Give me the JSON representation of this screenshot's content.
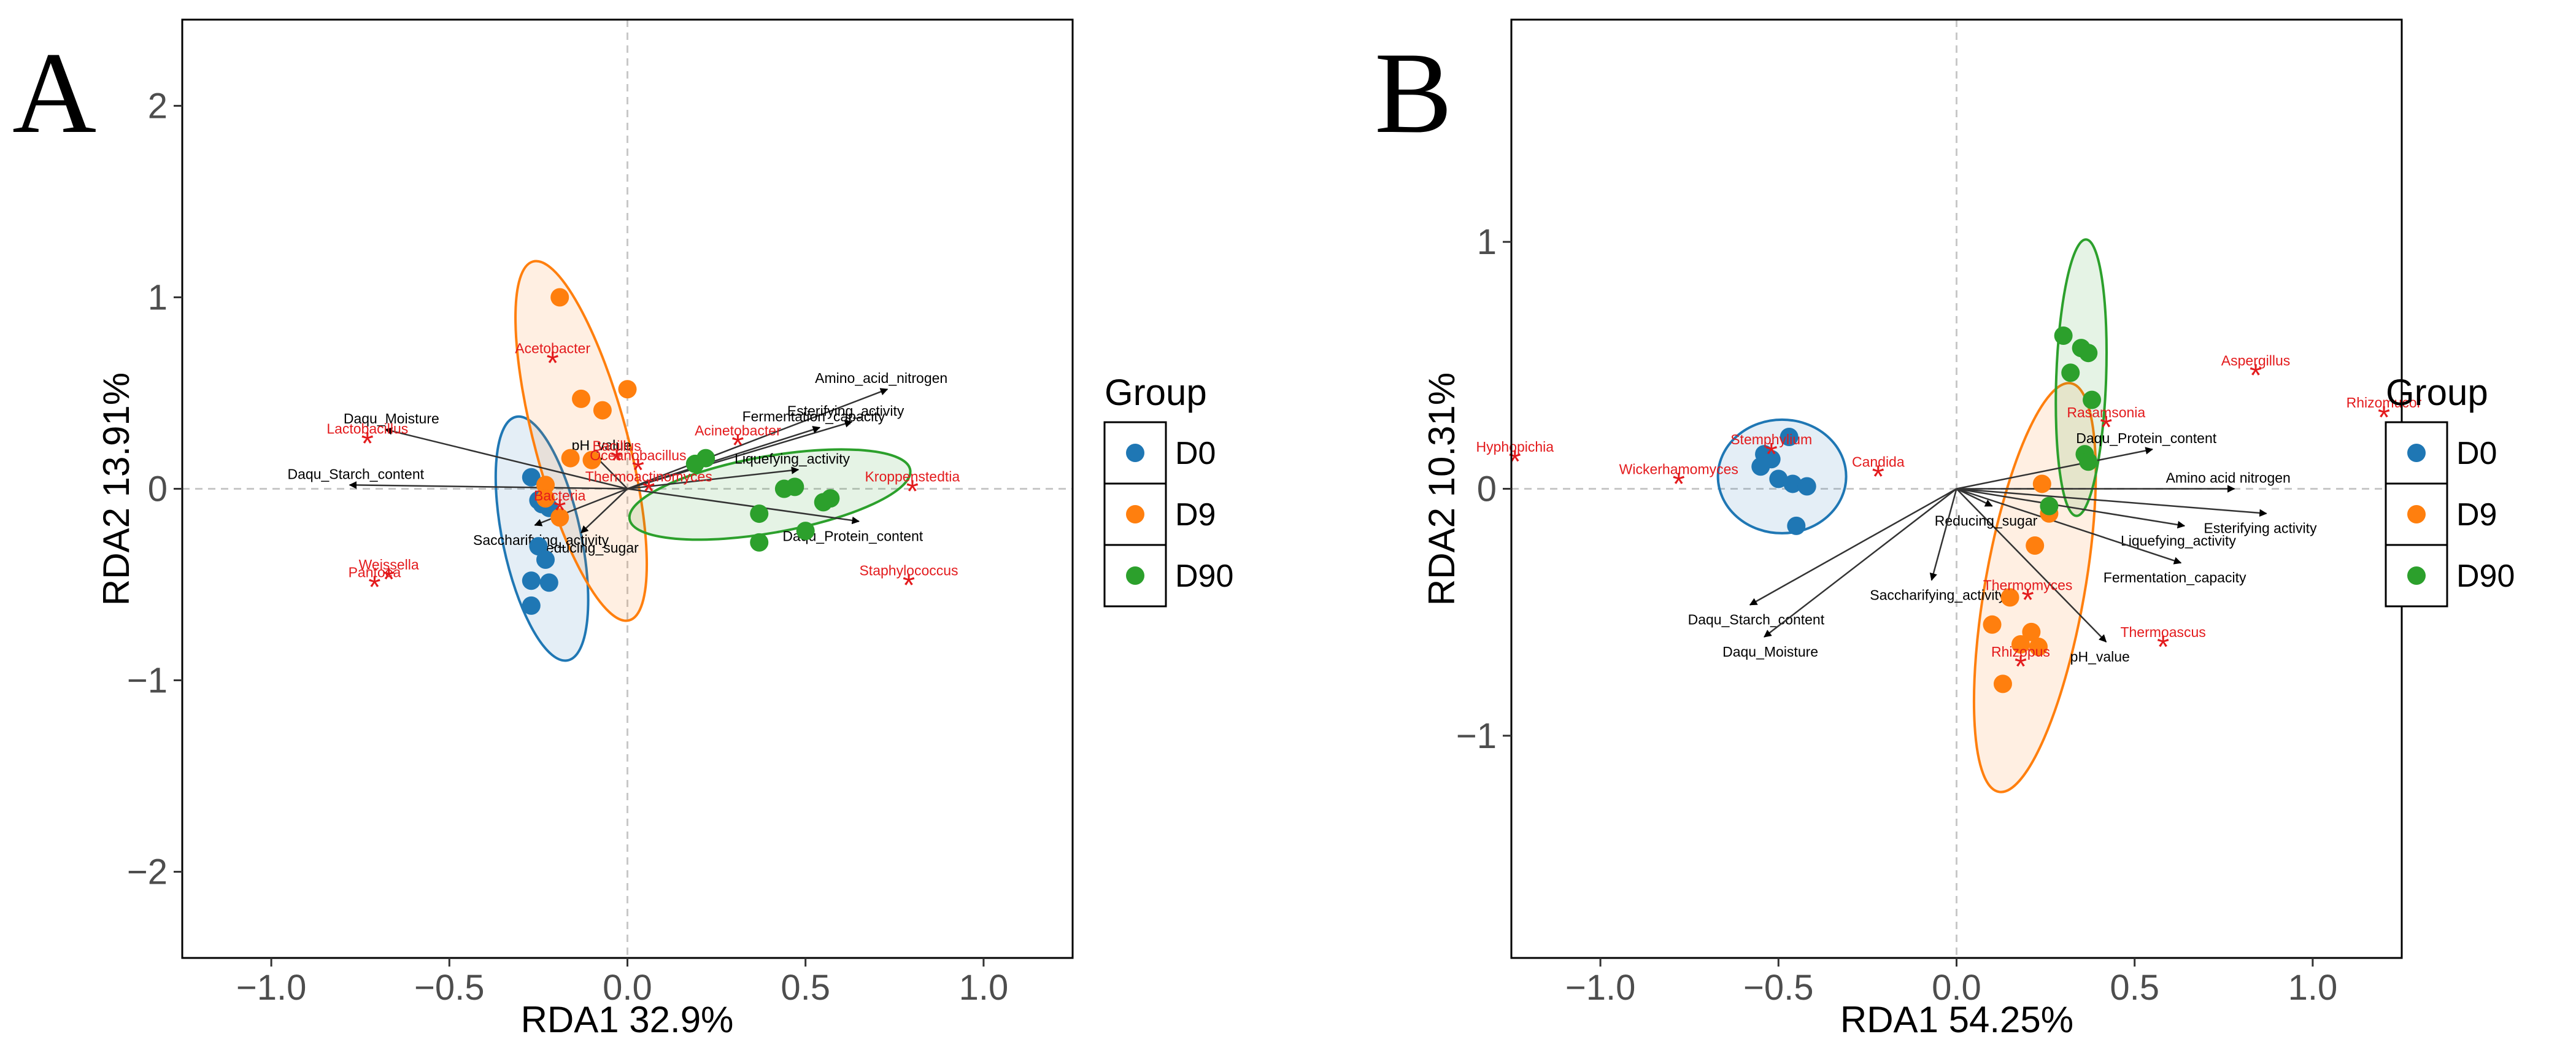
{
  "chart_data": [
    {
      "type": "scatter",
      "panel_label": "A",
      "xlabel": "RDA1 32.9%",
      "ylabel": "RDA2 13.91%",
      "xlim": [
        -1.25,
        1.25
      ],
      "ylim": [
        -2.45,
        2.45
      ],
      "xticks": [
        -1.0,
        -0.5,
        0.0,
        0.5,
        1.0
      ],
      "xtick_labels": [
        "−1.0",
        "−0.5",
        "0.0",
        "0.5",
        "1.0"
      ],
      "yticks": [
        -2,
        -1,
        0,
        1,
        2
      ],
      "ytick_labels": [
        "−2",
        "−1",
        "0",
        "1",
        "2"
      ],
      "legend": {
        "title": "Group",
        "position": "right",
        "groups": [
          "D0",
          "D9",
          "D90"
        ]
      },
      "group_colors": {
        "D0": "#1f77b4",
        "D9": "#ff7f0e",
        "D90": "#2ca02c"
      },
      "ellipses": [
        {
          "group": "D0",
          "cx": -0.24,
          "cy": -0.26,
          "rx": 0.11,
          "ry": 0.65,
          "angle": -12
        },
        {
          "group": "D9",
          "cx": -0.13,
          "cy": 0.25,
          "rx": 0.13,
          "ry": 0.97,
          "angle": -15
        },
        {
          "group": "D90",
          "cx": 0.4,
          "cy": -0.03,
          "rx": 0.4,
          "ry": 0.2,
          "angle": -10
        }
      ],
      "points": [
        {
          "group": "D0",
          "x": -0.27,
          "y": 0.06
        },
        {
          "group": "D0",
          "x": -0.25,
          "y": -0.06
        },
        {
          "group": "D0",
          "x": -0.24,
          "y": -0.08
        },
        {
          "group": "D0",
          "x": -0.22,
          "y": -0.1
        },
        {
          "group": "D0",
          "x": -0.25,
          "y": -0.3
        },
        {
          "group": "D0",
          "x": -0.23,
          "y": -0.37
        },
        {
          "group": "D0",
          "x": -0.27,
          "y": -0.48
        },
        {
          "group": "D0",
          "x": -0.22,
          "y": -0.49
        },
        {
          "group": "D0",
          "x": -0.27,
          "y": -0.61
        },
        {
          "group": "D9",
          "x": -0.19,
          "y": 1.0
        },
        {
          "group": "D9",
          "x": -0.13,
          "y": 0.47
        },
        {
          "group": "D9",
          "x": 0.0,
          "y": 0.52
        },
        {
          "group": "D9",
          "x": -0.07,
          "y": 0.41
        },
        {
          "group": "D9",
          "x": -0.16,
          "y": 0.16
        },
        {
          "group": "D9",
          "x": -0.1,
          "y": 0.15
        },
        {
          "group": "D9",
          "x": -0.23,
          "y": 0.02
        },
        {
          "group": "D9",
          "x": -0.23,
          "y": -0.05
        },
        {
          "group": "D9",
          "x": -0.19,
          "y": -0.15
        },
        {
          "group": "D90",
          "x": 0.19,
          "y": 0.13
        },
        {
          "group": "D90",
          "x": 0.22,
          "y": 0.16
        },
        {
          "group": "D90",
          "x": 0.44,
          "y": 0.0
        },
        {
          "group": "D90",
          "x": 0.47,
          "y": 0.01
        },
        {
          "group": "D90",
          "x": 0.55,
          "y": -0.07
        },
        {
          "group": "D90",
          "x": 0.57,
          "y": -0.05
        },
        {
          "group": "D90",
          "x": 0.37,
          "y": -0.13
        },
        {
          "group": "D90",
          "x": 0.5,
          "y": -0.22
        },
        {
          "group": "D90",
          "x": 0.37,
          "y": -0.28
        }
      ],
      "env_arrows": [
        {
          "label": "Amino_acid_nitrogen",
          "x": 0.73,
          "y": 0.52
        },
        {
          "label": "Esterifying_activity",
          "x": 0.63,
          "y": 0.35
        },
        {
          "label": "Fermentation_capacity",
          "x": 0.54,
          "y": 0.32
        },
        {
          "label": "Liquefying_activity",
          "x": 0.48,
          "y": 0.1
        },
        {
          "label": "Daqu_Protein_content",
          "x": 0.65,
          "y": -0.17
        },
        {
          "label": "Daqu_Moisture",
          "x": -0.68,
          "y": 0.31
        },
        {
          "label": "Daqu_Starch_content",
          "x": -0.78,
          "y": 0.02
        },
        {
          "label": "pH_value",
          "x": -0.09,
          "y": 0.17
        },
        {
          "label": "Saccharifying_activity",
          "x": -0.26,
          "y": -0.19
        },
        {
          "label": "Reducing_sugar",
          "x": -0.13,
          "y": -0.23
        }
      ],
      "taxa": [
        {
          "label": "Acetobacter",
          "x": -0.21,
          "y": 0.67
        },
        {
          "label": "Lactobacillus",
          "x": -0.73,
          "y": 0.25
        },
        {
          "label": "Bacillus",
          "x": -0.03,
          "y": 0.16
        },
        {
          "label": "Acinetobacter",
          "x": 0.31,
          "y": 0.24
        },
        {
          "label": "Thermoactinomyces",
          "x": 0.06,
          "y": 0.0
        },
        {
          "label": "Kroppenstedtia",
          "x": 0.8,
          "y": 0.0
        },
        {
          "label": "Oceanobacillus",
          "x": 0.03,
          "y": 0.11
        },
        {
          "label": "Bacteria",
          "x": -0.19,
          "y": -0.1
        },
        {
          "label": "Weissella",
          "x": -0.67,
          "y": -0.46
        },
        {
          "label": "Pantoea",
          "x": -0.71,
          "y": -0.5
        },
        {
          "label": "Staphylococcus",
          "x": 0.79,
          "y": -0.49
        }
      ]
    },
    {
      "type": "scatter",
      "panel_label": "B",
      "xlabel": "RDA1 54.25%",
      "ylabel": "RDA2 10.31%",
      "xlim": [
        -1.25,
        1.25
      ],
      "ylim": [
        -1.9,
        1.9
      ],
      "xticks": [
        -1.0,
        -0.5,
        0.0,
        0.5,
        1.0
      ],
      "xtick_labels": [
        "−1.0",
        "−0.5",
        "0.0",
        "0.5",
        "1.0"
      ],
      "yticks": [
        -1,
        0,
        1
      ],
      "ytick_labels": [
        "−1",
        "0",
        "1"
      ],
      "legend": {
        "title": "Group",
        "position": "right",
        "groups": [
          "D0",
          "D9",
          "D90"
        ]
      },
      "group_colors": {
        "D0": "#1f77b4",
        "D9": "#ff7f0e",
        "D90": "#2ca02c"
      },
      "ellipses": [
        {
          "group": "D0",
          "cx": -0.49,
          "cy": 0.05,
          "rx": 0.18,
          "ry": 0.23,
          "angle": 0
        },
        {
          "group": "D9",
          "cx": 0.22,
          "cy": -0.4,
          "rx": 0.14,
          "ry": 0.84,
          "angle": 10
        },
        {
          "group": "D90",
          "cx": 0.35,
          "cy": 0.45,
          "rx": 0.07,
          "ry": 0.56,
          "angle": 2
        }
      ],
      "points": [
        {
          "group": "D0",
          "x": -0.47,
          "y": 0.21
        },
        {
          "group": "D0",
          "x": -0.54,
          "y": 0.14
        },
        {
          "group": "D0",
          "x": -0.52,
          "y": 0.12
        },
        {
          "group": "D0",
          "x": -0.55,
          "y": 0.09
        },
        {
          "group": "D0",
          "x": -0.5,
          "y": 0.04
        },
        {
          "group": "D0",
          "x": -0.46,
          "y": 0.02
        },
        {
          "group": "D0",
          "x": -0.42,
          "y": 0.01
        },
        {
          "group": "D0",
          "x": -0.45,
          "y": -0.15
        },
        {
          "group": "D9",
          "x": 0.24,
          "y": 0.02
        },
        {
          "group": "D9",
          "x": 0.26,
          "y": -0.1
        },
        {
          "group": "D9",
          "x": 0.22,
          "y": -0.23
        },
        {
          "group": "D9",
          "x": 0.15,
          "y": -0.44
        },
        {
          "group": "D9",
          "x": 0.1,
          "y": -0.55
        },
        {
          "group": "D9",
          "x": 0.21,
          "y": -0.58
        },
        {
          "group": "D9",
          "x": 0.18,
          "y": -0.63
        },
        {
          "group": "D9",
          "x": 0.23,
          "y": -0.64
        },
        {
          "group": "D9",
          "x": 0.13,
          "y": -0.79
        },
        {
          "group": "D90",
          "x": 0.3,
          "y": 0.62
        },
        {
          "group": "D90",
          "x": 0.35,
          "y": 0.57
        },
        {
          "group": "D90",
          "x": 0.37,
          "y": 0.55
        },
        {
          "group": "D90",
          "x": 0.32,
          "y": 0.47
        },
        {
          "group": "D90",
          "x": 0.38,
          "y": 0.36
        },
        {
          "group": "D90",
          "x": 0.36,
          "y": 0.14
        },
        {
          "group": "D90",
          "x": 0.37,
          "y": 0.11
        },
        {
          "group": "D90",
          "x": 0.26,
          "y": -0.07
        }
      ],
      "env_arrows": [
        {
          "label": "Daqu_Protein_content",
          "x": 0.55,
          "y": 0.16
        },
        {
          "label": "Amino acid nitrogen",
          "x": 0.78,
          "y": 0.0
        },
        {
          "label": "Esterifying activity",
          "x": 0.87,
          "y": -0.1
        },
        {
          "label": "Liquefying_activity",
          "x": 0.64,
          "y": -0.15
        },
        {
          "label": "Fermentation_capacity",
          "x": 0.63,
          "y": -0.3
        },
        {
          "label": "pH_value",
          "x": 0.42,
          "y": -0.62
        },
        {
          "label": "Reducing_sugar",
          "x": 0.1,
          "y": -0.07
        },
        {
          "label": "Saccharifying_activity",
          "x": -0.07,
          "y": -0.37
        },
        {
          "label": "Daqu_Starch_content",
          "x": -0.58,
          "y": -0.47
        },
        {
          "label": "Daqu_Moisture",
          "x": -0.54,
          "y": -0.6
        }
      ],
      "taxa": [
        {
          "label": "Aspergillus",
          "x": 0.84,
          "y": 0.47
        },
        {
          "label": "Rhizomucor",
          "x": 1.2,
          "y": 0.3
        },
        {
          "label": "Rasamsonia",
          "x": 0.42,
          "y": 0.26
        },
        {
          "label": "Stemphylium",
          "x": -0.52,
          "y": 0.15
        },
        {
          "label": "Hyphopichia",
          "x": -1.24,
          "y": 0.12
        },
        {
          "label": "Candida",
          "x": -0.22,
          "y": 0.06
        },
        {
          "label": "Wickerhamomyces",
          "x": -0.78,
          "y": 0.03
        },
        {
          "label": "Thermomyces",
          "x": 0.2,
          "y": -0.44
        },
        {
          "label": "Thermoascus",
          "x": 0.58,
          "y": -0.63
        },
        {
          "label": "Rhizopus",
          "x": 0.18,
          "y": -0.71
        }
      ]
    }
  ]
}
